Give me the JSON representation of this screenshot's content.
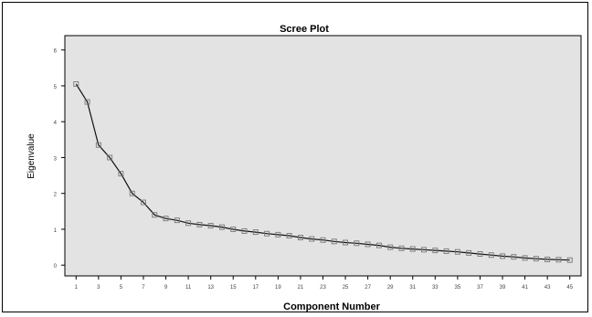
{
  "chart_data": {
    "type": "line",
    "title": "Scree Plot",
    "xlabel": "Component Number",
    "ylabel": "Eigenvalue",
    "x": [
      1,
      2,
      3,
      4,
      5,
      6,
      7,
      8,
      9,
      10,
      11,
      12,
      13,
      14,
      15,
      16,
      17,
      18,
      19,
      20,
      21,
      22,
      23,
      24,
      25,
      26,
      27,
      28,
      29,
      30,
      31,
      32,
      33,
      34,
      35,
      36,
      37,
      38,
      39,
      40,
      41,
      42,
      43,
      44,
      45
    ],
    "values": [
      5.05,
      4.55,
      3.35,
      3.0,
      2.55,
      2.0,
      1.75,
      1.4,
      1.3,
      1.25,
      1.17,
      1.13,
      1.1,
      1.06,
      1.0,
      0.95,
      0.92,
      0.88,
      0.85,
      0.82,
      0.77,
      0.73,
      0.7,
      0.66,
      0.63,
      0.61,
      0.58,
      0.55,
      0.5,
      0.47,
      0.45,
      0.43,
      0.41,
      0.39,
      0.37,
      0.34,
      0.31,
      0.28,
      0.25,
      0.23,
      0.2,
      0.18,
      0.16,
      0.15,
      0.14
    ],
    "xticks": [
      "1",
      "3",
      "5",
      "7",
      "9",
      "11",
      "13",
      "15",
      "17",
      "19",
      "21",
      "23",
      "25",
      "27",
      "29",
      "31",
      "33",
      "35",
      "37",
      "39",
      "41",
      "43",
      "45"
    ],
    "yticks": [
      "0",
      "1",
      "2",
      "3",
      "4",
      "5",
      "6"
    ],
    "xlim": [
      0,
      46
    ],
    "ylim": [
      -0.3,
      6.4
    ],
    "grid": false,
    "colors": {
      "plot_bg": "#e3e3e3",
      "line": "#111111",
      "marker": "#777777",
      "axis": "#000000"
    }
  }
}
